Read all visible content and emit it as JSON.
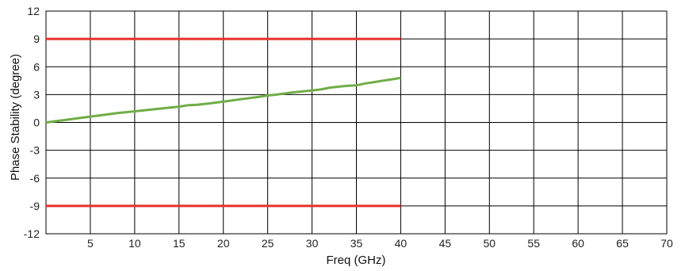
{
  "chart_data": {
    "type": "line",
    "title": "",
    "xlabel": "Freq (GHz)",
    "ylabel": "Phase Stability (degree)",
    "xlim": [
      0,
      70
    ],
    "ylim": [
      -12,
      12
    ],
    "x_ticks": [
      5,
      10,
      15,
      20,
      25,
      30,
      35,
      40,
      45,
      50,
      55,
      60,
      65,
      70
    ],
    "y_ticks": [
      12,
      9,
      6,
      3,
      0,
      -3,
      -6,
      -9,
      -12
    ],
    "grid": true,
    "colors": {
      "measured": "#70ad47",
      "limit": "#e8302a",
      "grid": "#000000"
    },
    "series": [
      {
        "role": "measured",
        "x": [
          0,
          2,
          4,
          6,
          8,
          10,
          12,
          14,
          15,
          16,
          17,
          18,
          20,
          22,
          24,
          25,
          26,
          28,
          29,
          30,
          31,
          32,
          33,
          34,
          35,
          36,
          37,
          38,
          39,
          40
        ],
        "y": [
          0,
          0.25,
          0.5,
          0.75,
          1.0,
          1.2,
          1.4,
          1.6,
          1.7,
          1.85,
          1.9,
          2.0,
          2.25,
          2.5,
          2.75,
          2.9,
          3.0,
          3.25,
          3.35,
          3.45,
          3.55,
          3.75,
          3.85,
          3.95,
          4.0,
          4.2,
          4.35,
          4.5,
          4.65,
          4.8
        ]
      },
      {
        "role": "limit",
        "x": [
          0,
          40
        ],
        "y": [
          9,
          9
        ]
      },
      {
        "role": "limit",
        "x": [
          0,
          40
        ],
        "y": [
          -9,
          -9
        ]
      }
    ]
  }
}
